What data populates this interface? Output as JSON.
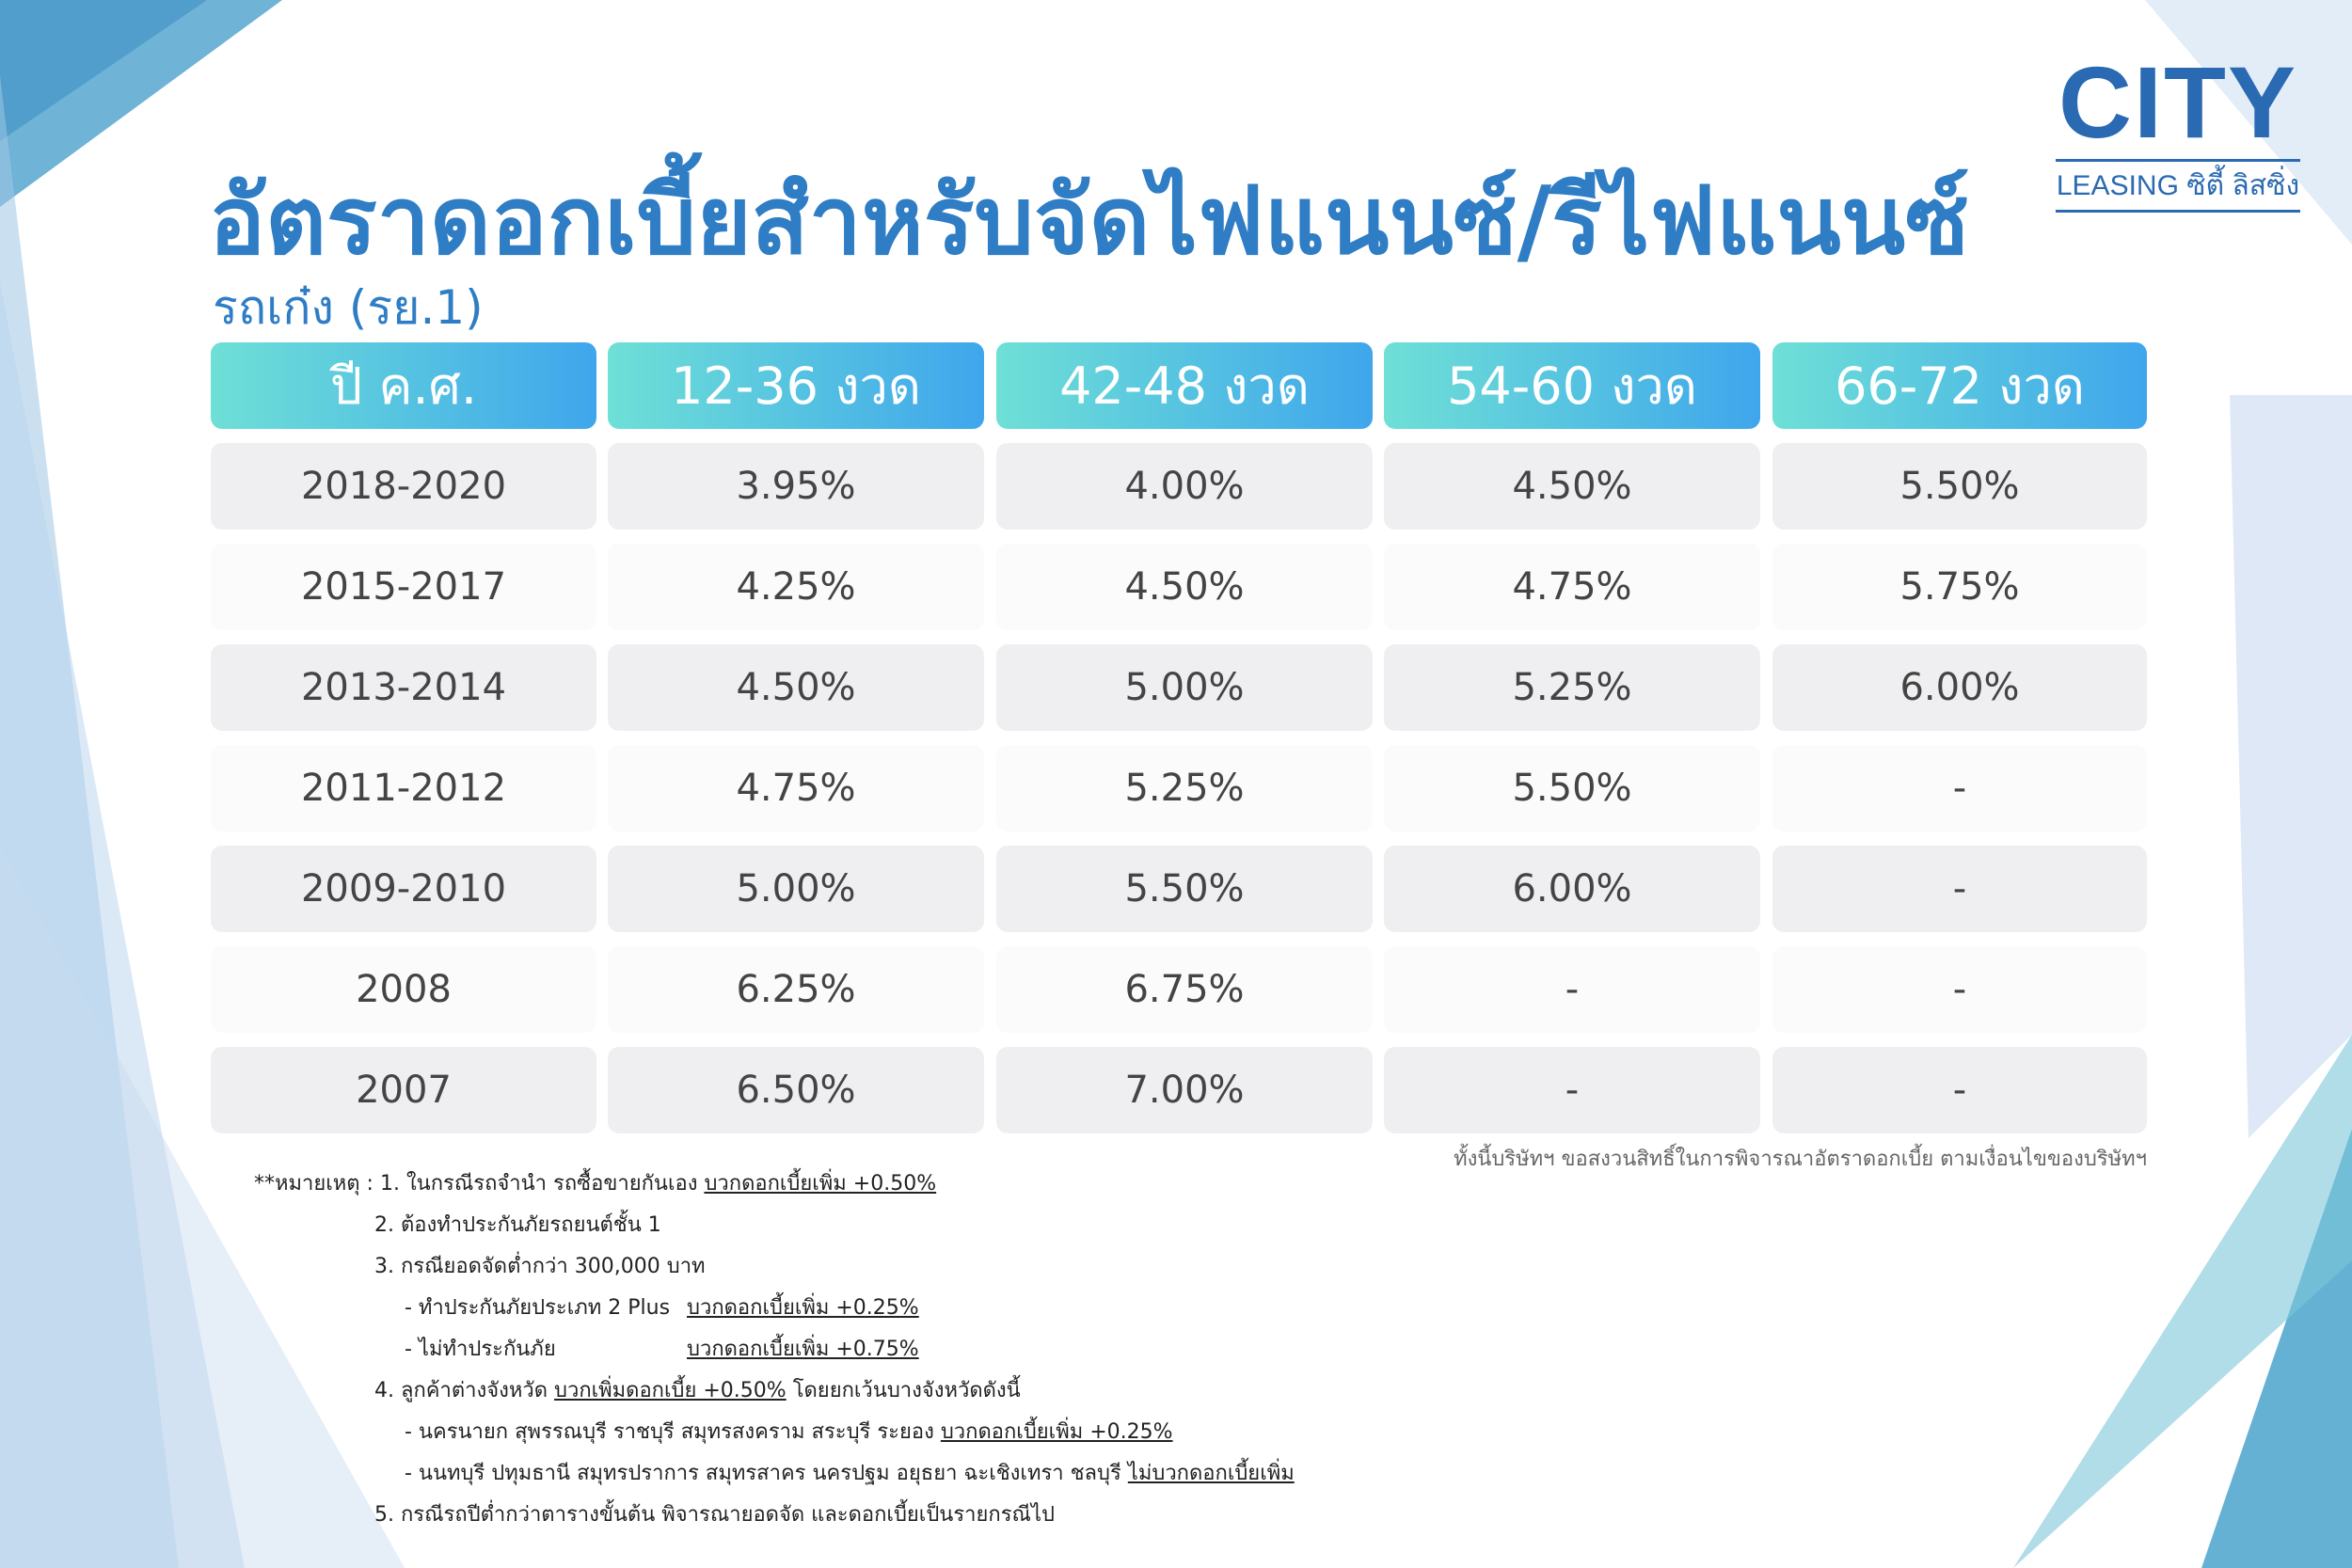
{
  "logo": {
    "main": "CITY",
    "sub": "LEASING ซิตี้ ลิสซิ่ง"
  },
  "title": "อัตราดอกเบี้ยสำหรับจัดไฟแนนซ์/รีไฟแนนซ์",
  "subtitle": "รถเก๋ง (รย.1)",
  "table": {
    "headers": [
      "ปี ค.ศ.",
      "12-36 งวด",
      "42-48 งวด",
      "54-60 งวด",
      "66-72 งวด"
    ],
    "rows": [
      [
        "2018-2020",
        "3.95%",
        "4.00%",
        "4.50%",
        "5.50%"
      ],
      [
        "2015-2017",
        "4.25%",
        "4.50%",
        "4.75%",
        "5.75%"
      ],
      [
        "2013-2014",
        "4.50%",
        "5.00%",
        "5.25%",
        "6.00%"
      ],
      [
        "2011-2012",
        "4.75%",
        "5.25%",
        "5.50%",
        "-"
      ],
      [
        "2009-2010",
        "5.00%",
        "5.50%",
        "6.00%",
        "-"
      ],
      [
        "2008",
        "6.25%",
        "6.75%",
        "-",
        "-"
      ],
      [
        "2007",
        "6.50%",
        "7.00%",
        "-",
        "-"
      ]
    ]
  },
  "disclaimer": "ทั้งนี้บริษัทฯ ขอสงวนสิทธิ์ในการพิจารณาอัตราดอกเบี้ย ตามเงื่อนไขของบริษัทฯ",
  "notes": {
    "n1_prefix": "**หมายเหตุ : 1. ในกรณีรถจำนำ รถซื้อขายกันเอง ",
    "n1_u": "บวกดอกเบี้ยเพิ่ม +0.50%",
    "n2": "2. ต้องทำประกันภัยรถยนต์ชั้น 1",
    "n3": "3. กรณียอดจัดต่ำกว่า 300,000 บาท",
    "n3a_prefix": "- ทำประกันภัยประเภท 2 Plus",
    "n3a_u": "บวกดอกเบี้ยเพิ่ม +0.25%",
    "n3b_prefix": "- ไม่ทำประกันภัย",
    "n3b_u": "บวกดอกเบี้ยเพิ่ม +0.75%",
    "n4_prefix": "4. ลูกค้าต่างจังหวัด ",
    "n4_u": "บวกเพิ่มดอกเบี้ย +0.50%",
    "n4_suffix": " โดยยกเว้นบางจังหวัดดังนี้",
    "n4a_prefix": "- นครนายก สุพรรณบุรี ราชบุรี สมุทรสงคราม สระบุรี ระยอง ",
    "n4a_u": "บวกดอกเบี้ยเพิ่ม +0.25%",
    "n4b_prefix": "- นนทบุรี ปทุมธานี สมุทรปราการ สมุทรสาคร นครปฐม อยุธยา ฉะเชิงเทรา ชลบุรี ",
    "n4b_u": "ไม่บวกดอกเบี้ยเพิ่ม",
    "n5": "5. กรณีรถปีต่ำกว่าตารางขั้นต้น พิจารณายอดจัด และดอกเบี้ยเป็นรายกรณีไป"
  },
  "colors": {
    "accent": "#2f7dc4",
    "header_start": "#6ee0d6",
    "header_end": "#3fa6ec"
  }
}
